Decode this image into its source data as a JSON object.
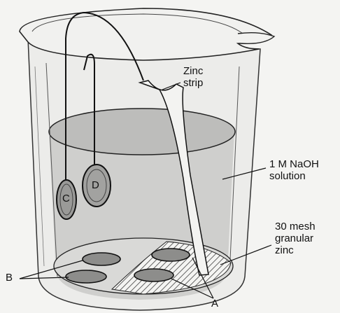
{
  "labels": {
    "zinc_strip": [
      "Zinc",
      "strip"
    ],
    "naoh": [
      "1 M NaOH",
      "solution"
    ],
    "granular": [
      "30 mesh",
      "granular",
      "zinc"
    ],
    "B": "B",
    "A": "A",
    "C": "C",
    "D": "D"
  },
  "colors": {
    "ink": "#111111",
    "liquid": "#c9c9c7",
    "glass": "#e6e6e3",
    "paper": "#f4f4f2"
  }
}
